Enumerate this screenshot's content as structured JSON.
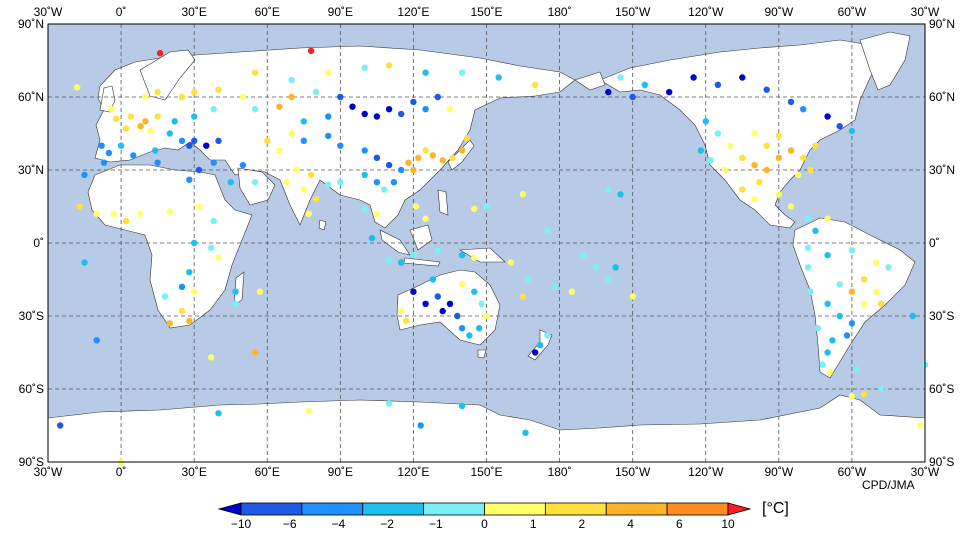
{
  "map": {
    "credit": "CPD/JMA",
    "unit": "[°C]",
    "lon_ticks": [
      "30˚W",
      "0˚",
      "30˚E",
      "60˚E",
      "90˚E",
      "120˚E",
      "150˚E",
      "180˚",
      "150˚W",
      "120˚W",
      "90˚W",
      "60˚W",
      "30˚W"
    ],
    "lat_ticks": [
      "90˚N",
      "60˚N",
      "30˚N",
      "0˚",
      "30˚S",
      "60˚S",
      "90˚S"
    ],
    "lon_range": [
      -30,
      330
    ],
    "lat_range": [
      -90,
      90
    ],
    "colors": {
      "ocean": "#b8cbe6",
      "land": "#ffffff",
      "coast": "#333333",
      "grid": "#555555"
    },
    "legend": {
      "labels": [
        "−10",
        "−6",
        "−4",
        "−2",
        "−1",
        "0",
        "1",
        "2",
        "4",
        "6",
        "10"
      ],
      "colors": [
        "#0000cd",
        "#1e5ae6",
        "#1e90ff",
        "#1ebeee",
        "#78f0f5",
        "#ffff66",
        "#ffe03c",
        "#ffb428",
        "#ff8c1e",
        "#ff1e1e"
      ]
    }
  },
  "chart_data": {
    "type": "scatter",
    "stations": [
      {
        "lon": 10,
        "lat": 50,
        "cat": 7
      },
      {
        "lon": 8,
        "lat": 48,
        "cat": 7
      },
      {
        "lon": 4,
        "lat": 52,
        "cat": 6
      },
      {
        "lon": 15,
        "lat": 52,
        "cat": 6
      },
      {
        "lon": 2,
        "lat": 47,
        "cat": 6
      },
      {
        "lon": -2,
        "lat": 51,
        "cat": 6
      },
      {
        "lon": -4,
        "lat": 55,
        "cat": 5
      },
      {
        "lon": 12,
        "lat": 46,
        "cat": 5
      },
      {
        "lon": 20,
        "lat": 45,
        "cat": 3
      },
      {
        "lon": 25,
        "lat": 42,
        "cat": 2
      },
      {
        "lon": 28,
        "lat": 40,
        "cat": 1
      },
      {
        "lon": 30,
        "lat": 42,
        "cat": 1
      },
      {
        "lon": 35,
        "lat": 40,
        "cat": 0
      },
      {
        "lon": 40,
        "lat": 42,
        "cat": 1
      },
      {
        "lon": 22,
        "lat": 50,
        "cat": 3
      },
      {
        "lon": 30,
        "lat": 52,
        "cat": 3
      },
      {
        "lon": 38,
        "lat": 55,
        "cat": 4
      },
      {
        "lon": 25,
        "lat": 60,
        "cat": 6
      },
      {
        "lon": 15,
        "lat": 62,
        "cat": 6
      },
      {
        "lon": 10,
        "lat": 60,
        "cat": 5
      },
      {
        "lon": 30,
        "lat": 62,
        "cat": 6
      },
      {
        "lon": 40,
        "lat": 63,
        "cat": 6
      },
      {
        "lon": 50,
        "lat": 60,
        "cat": 5
      },
      {
        "lon": 55,
        "lat": 55,
        "cat": 4
      },
      {
        "lon": -8,
        "lat": 40,
        "cat": 2
      },
      {
        "lon": -5,
        "lat": 37,
        "cat": 2
      },
      {
        "lon": 0,
        "lat": 40,
        "cat": 3
      },
      {
        "lon": 14,
        "lat": 38,
        "cat": 3
      },
      {
        "lon": -18,
        "lat": 64,
        "cat": 5
      },
      {
        "lon": 16,
        "lat": 78,
        "cat": 9
      },
      {
        "lon": 78,
        "lat": 79,
        "cat": 9
      },
      {
        "lon": 55,
        "lat": 70,
        "cat": 6
      },
      {
        "lon": 70,
        "lat": 67,
        "cat": 4
      },
      {
        "lon": 85,
        "lat": 70,
        "cat": 5
      },
      {
        "lon": 100,
        "lat": 72,
        "cat": 4
      },
      {
        "lon": 110,
        "lat": 73,
        "cat": 6
      },
      {
        "lon": 125,
        "lat": 70,
        "cat": 3
      },
      {
        "lon": 140,
        "lat": 70,
        "cat": 4
      },
      {
        "lon": 155,
        "lat": 68,
        "cat": 3
      },
      {
        "lon": 170,
        "lat": 65,
        "cat": 6
      },
      {
        "lon": 70,
        "lat": 60,
        "cat": 7
      },
      {
        "lon": 65,
        "lat": 56,
        "cat": 7
      },
      {
        "lon": 80,
        "lat": 62,
        "cat": 4
      },
      {
        "lon": 90,
        "lat": 60,
        "cat": 1
      },
      {
        "lon": 95,
        "lat": 56,
        "cat": 0
      },
      {
        "lon": 100,
        "lat": 53,
        "cat": 0
      },
      {
        "lon": 105,
        "lat": 52,
        "cat": 0
      },
      {
        "lon": 110,
        "lat": 55,
        "cat": 0
      },
      {
        "lon": 115,
        "lat": 53,
        "cat": 1
      },
      {
        "lon": 120,
        "lat": 58,
        "cat": 1
      },
      {
        "lon": 125,
        "lat": 55,
        "cat": 2
      },
      {
        "lon": 130,
        "lat": 60,
        "cat": 1
      },
      {
        "lon": 135,
        "lat": 55,
        "cat": 5
      },
      {
        "lon": 85,
        "lat": 52,
        "cat": 2
      },
      {
        "lon": 75,
        "lat": 50,
        "cat": 3
      },
      {
        "lon": 70,
        "lat": 45,
        "cat": 5
      },
      {
        "lon": 60,
        "lat": 42,
        "cat": 6
      },
      {
        "lon": 65,
        "lat": 38,
        "cat": 5
      },
      {
        "lon": 75,
        "lat": 42,
        "cat": 2
      },
      {
        "lon": 85,
        "lat": 44,
        "cat": 2
      },
      {
        "lon": 90,
        "lat": 40,
        "cat": 2
      },
      {
        "lon": 100,
        "lat": 38,
        "cat": 2
      },
      {
        "lon": 105,
        "lat": 35,
        "cat": 1
      },
      {
        "lon": 110,
        "lat": 32,
        "cat": 1
      },
      {
        "lon": 115,
        "lat": 30,
        "cat": 2
      },
      {
        "lon": 112,
        "lat": 25,
        "cat": 2
      },
      {
        "lon": 118,
        "lat": 33,
        "cat": 7
      },
      {
        "lon": 120,
        "lat": 30,
        "cat": 7
      },
      {
        "lon": 122,
        "lat": 35,
        "cat": 7
      },
      {
        "lon": 125,
        "lat": 38,
        "cat": 6
      },
      {
        "lon": 128,
        "lat": 36,
        "cat": 7
      },
      {
        "lon": 132,
        "lat": 34,
        "cat": 7
      },
      {
        "lon": 136,
        "lat": 35,
        "cat": 6
      },
      {
        "lon": 140,
        "lat": 38,
        "cat": 7
      },
      {
        "lon": 142,
        "lat": 43,
        "cat": 6
      },
      {
        "lon": 100,
        "lat": 28,
        "cat": 3
      },
      {
        "lon": 105,
        "lat": 25,
        "cat": 2
      },
      {
        "lon": 108,
        "lat": 22,
        "cat": 4
      },
      {
        "lon": 78,
        "lat": 28,
        "cat": 6
      },
      {
        "lon": 75,
        "lat": 22,
        "cat": 5
      },
      {
        "lon": 80,
        "lat": 18,
        "cat": 6
      },
      {
        "lon": 77,
        "lat": 12,
        "cat": 5
      },
      {
        "lon": 85,
        "lat": 24,
        "cat": 4
      },
      {
        "lon": 90,
        "lat": 25,
        "cat": 4
      },
      {
        "lon": 72,
        "lat": 30,
        "cat": 5
      },
      {
        "lon": 68,
        "lat": 25,
        "cat": 5
      },
      {
        "lon": 55,
        "lat": 25,
        "cat": 4
      },
      {
        "lon": 45,
        "lat": 25,
        "cat": 3
      },
      {
        "lon": 50,
        "lat": 32,
        "cat": 2
      },
      {
        "lon": 38,
        "lat": 33,
        "cat": 2
      },
      {
        "lon": 32,
        "lat": 30,
        "cat": 1
      },
      {
        "lon": 28,
        "lat": 26,
        "cat": 2
      },
      {
        "lon": 15,
        "lat": 33,
        "cat": 2
      },
      {
        "lon": 5,
        "lat": 36,
        "cat": 2
      },
      {
        "lon": -7,
        "lat": 33,
        "cat": 2
      },
      {
        "lon": -15,
        "lat": 28,
        "cat": 2
      },
      {
        "lon": -17,
        "lat": 15,
        "cat": 6
      },
      {
        "lon": -10,
        "lat": 12,
        "cat": 5
      },
      {
        "lon": -3,
        "lat": 12,
        "cat": 5
      },
      {
        "lon": 2,
        "lat": 9,
        "cat": 6
      },
      {
        "lon": 8,
        "lat": 12,
        "cat": 5
      },
      {
        "lon": 20,
        "lat": 13,
        "cat": 5
      },
      {
        "lon": 32,
        "lat": 15,
        "cat": 5
      },
      {
        "lon": 38,
        "lat": 9,
        "cat": 4
      },
      {
        "lon": 30,
        "lat": 0,
        "cat": 3
      },
      {
        "lon": 37,
        "lat": -2,
        "cat": 4
      },
      {
        "lon": 40,
        "lat": -6,
        "cat": 5
      },
      {
        "lon": 28,
        "lat": -12,
        "cat": 3
      },
      {
        "lon": 25,
        "lat": -18,
        "cat": 2
      },
      {
        "lon": 30,
        "lat": -20,
        "cat": 5
      },
      {
        "lon": 18,
        "lat": -22,
        "cat": 4
      },
      {
        "lon": 25,
        "lat": -28,
        "cat": 6
      },
      {
        "lon": 28,
        "lat": -32,
        "cat": 7
      },
      {
        "lon": 20,
        "lat": -33,
        "cat": 7
      },
      {
        "lon": 47,
        "lat": -20,
        "cat": 3
      },
      {
        "lon": 47,
        "lat": -25,
        "cat": 4
      },
      {
        "lon": 57,
        "lat": -20,
        "cat": 5
      },
      {
        "lon": 55,
        "lat": -45,
        "cat": 7
      },
      {
        "lon": 37,
        "lat": -47,
        "cat": 5
      },
      {
        "lon": -10,
        "lat": -40,
        "cat": 2
      },
      {
        "lon": -15,
        "lat": -8,
        "cat": 3
      },
      {
        "lon": 100,
        "lat": 14,
        "cat": 4
      },
      {
        "lon": 105,
        "lat": 12,
        "cat": 5
      },
      {
        "lon": 103,
        "lat": 2,
        "cat": 3
      },
      {
        "lon": 110,
        "lat": -7,
        "cat": 4
      },
      {
        "lon": 115,
        "lat": -8,
        "cat": 3
      },
      {
        "lon": 120,
        "lat": -5,
        "cat": 4
      },
      {
        "lon": 125,
        "lat": 10,
        "cat": 5
      },
      {
        "lon": 121,
        "lat": 15,
        "cat": 5
      },
      {
        "lon": 130,
        "lat": -3,
        "cat": 4
      },
      {
        "lon": 140,
        "lat": -5,
        "cat": 3
      },
      {
        "lon": 145,
        "lat": -6,
        "cat": 5
      },
      {
        "lon": 120,
        "lat": -20,
        "cat": 0
      },
      {
        "lon": 125,
        "lat": -25,
        "cat": 0
      },
      {
        "lon": 130,
        "lat": -22,
        "cat": 1
      },
      {
        "lon": 135,
        "lat": -25,
        "cat": 0
      },
      {
        "lon": 138,
        "lat": -30,
        "cat": 1
      },
      {
        "lon": 132,
        "lat": -28,
        "cat": 0
      },
      {
        "lon": 145,
        "lat": -20,
        "cat": 3
      },
      {
        "lon": 148,
        "lat": -25,
        "cat": 4
      },
      {
        "lon": 150,
        "lat": -30,
        "cat": 5
      },
      {
        "lon": 147,
        "lat": -35,
        "cat": 3
      },
      {
        "lon": 143,
        "lat": -38,
        "cat": 3
      },
      {
        "lon": 140,
        "lat": -35,
        "cat": 2
      },
      {
        "lon": 117,
        "lat": -32,
        "cat": 6
      },
      {
        "lon": 115,
        "lat": -28,
        "cat": 5
      },
      {
        "lon": 128,
        "lat": -15,
        "cat": 3
      },
      {
        "lon": 140,
        "lat": -17,
        "cat": 5
      },
      {
        "lon": 172,
        "lat": -42,
        "cat": 3
      },
      {
        "lon": 175,
        "lat": -38,
        "cat": 4
      },
      {
        "lon": 170,
        "lat": -45,
        "cat": 0
      },
      {
        "lon": 178,
        "lat": -18,
        "cat": 4
      },
      {
        "lon": 185,
        "lat": -20,
        "cat": 5
      },
      {
        "lon": 200,
        "lat": -15,
        "cat": 4
      },
      {
        "lon": 210,
        "lat": -22,
        "cat": 5
      },
      {
        "lon": 195,
        "lat": -10,
        "cat": 4
      },
      {
        "lon": 190,
        "lat": -5,
        "cat": 4
      },
      {
        "lon": 203,
        "lat": -10,
        "cat": 3
      },
      {
        "lon": 160,
        "lat": -8,
        "cat": 5
      },
      {
        "lon": 167,
        "lat": -15,
        "cat": 4
      },
      {
        "lon": 165,
        "lat": -22,
        "cat": 6
      },
      {
        "lon": 205,
        "lat": 20,
        "cat": 3
      },
      {
        "lon": 200,
        "lat": 22,
        "cat": 4
      },
      {
        "lon": 165,
        "lat": 20,
        "cat": 5
      },
      {
        "lon": 150,
        "lat": 15,
        "cat": 4
      },
      {
        "lon": 145,
        "lat": 14,
        "cat": 5
      },
      {
        "lon": 175,
        "lat": 5,
        "cat": 4
      },
      {
        "lon": 210,
        "lat": 60,
        "cat": 1
      },
      {
        "lon": 200,
        "lat": 62,
        "cat": 0
      },
      {
        "lon": 215,
        "lat": 65,
        "cat": 3
      },
      {
        "lon": 205,
        "lat": 68,
        "cat": 4
      },
      {
        "lon": 225,
        "lat": 62,
        "cat": 0
      },
      {
        "lon": 235,
        "lat": 68,
        "cat": 0
      },
      {
        "lon": 245,
        "lat": 65,
        "cat": 1
      },
      {
        "lon": 255,
        "lat": 68,
        "cat": 0
      },
      {
        "lon": 265,
        "lat": 63,
        "cat": 1
      },
      {
        "lon": 275,
        "lat": 58,
        "cat": 1
      },
      {
        "lon": 280,
        "lat": 55,
        "cat": 2
      },
      {
        "lon": 290,
        "lat": 52,
        "cat": 0
      },
      {
        "lon": 295,
        "lat": 48,
        "cat": 1
      },
      {
        "lon": 300,
        "lat": 46,
        "cat": 3
      },
      {
        "lon": 240,
        "lat": 50,
        "cat": 3
      },
      {
        "lon": 245,
        "lat": 45,
        "cat": 4
      },
      {
        "lon": 250,
        "lat": 40,
        "cat": 5
      },
      {
        "lon": 255,
        "lat": 35,
        "cat": 6
      },
      {
        "lon": 260,
        "lat": 32,
        "cat": 7
      },
      {
        "lon": 265,
        "lat": 30,
        "cat": 7
      },
      {
        "lon": 270,
        "lat": 35,
        "cat": 7
      },
      {
        "lon": 275,
        "lat": 38,
        "cat": 7
      },
      {
        "lon": 280,
        "lat": 35,
        "cat": 6
      },
      {
        "lon": 285,
        "lat": 40,
        "cat": 6
      },
      {
        "lon": 283,
        "lat": 30,
        "cat": 6
      },
      {
        "lon": 278,
        "lat": 28,
        "cat": 5
      },
      {
        "lon": 260,
        "lat": 45,
        "cat": 5
      },
      {
        "lon": 270,
        "lat": 44,
        "cat": 6
      },
      {
        "lon": 265,
        "lat": 40,
        "cat": 6
      },
      {
        "lon": 238,
        "lat": 38,
        "cat": 3
      },
      {
        "lon": 242,
        "lat": 34,
        "cat": 4
      },
      {
        "lon": 248,
        "lat": 30,
        "cat": 5
      },
      {
        "lon": 255,
        "lat": 22,
        "cat": 6
      },
      {
        "lon": 260,
        "lat": 18,
        "cat": 5
      },
      {
        "lon": 262,
        "lat": 25,
        "cat": 6
      },
      {
        "lon": 270,
        "lat": 20,
        "cat": 5
      },
      {
        "lon": 275,
        "lat": 15,
        "cat": 5
      },
      {
        "lon": 282,
        "lat": 10,
        "cat": 4
      },
      {
        "lon": 290,
        "lat": 10,
        "cat": 5
      },
      {
        "lon": 285,
        "lat": 5,
        "cat": 3
      },
      {
        "lon": 282,
        "lat": -2,
        "cat": 4
      },
      {
        "lon": 290,
        "lat": -5,
        "cat": 3
      },
      {
        "lon": 300,
        "lat": -3,
        "cat": 4
      },
      {
        "lon": 310,
        "lat": -8,
        "cat": 5
      },
      {
        "lon": 315,
        "lat": -10,
        "cat": 4
      },
      {
        "lon": 305,
        "lat": -15,
        "cat": 6
      },
      {
        "lon": 300,
        "lat": -20,
        "cat": 7
      },
      {
        "lon": 310,
        "lat": -20,
        "cat": 5
      },
      {
        "lon": 312,
        "lat": -25,
        "cat": 6
      },
      {
        "lon": 305,
        "lat": -25,
        "cat": 5
      },
      {
        "lon": 295,
        "lat": -17,
        "cat": 4
      },
      {
        "lon": 290,
        "lat": -25,
        "cat": 3
      },
      {
        "lon": 295,
        "lat": -30,
        "cat": 3
      },
      {
        "lon": 300,
        "lat": -33,
        "cat": 2
      },
      {
        "lon": 298,
        "lat": -38,
        "cat": 2
      },
      {
        "lon": 292,
        "lat": -40,
        "cat": 3
      },
      {
        "lon": 290,
        "lat": -45,
        "cat": 3
      },
      {
        "lon": 288,
        "lat": -50,
        "cat": 4
      },
      {
        "lon": 291,
        "lat": -53,
        "cat": 5
      },
      {
        "lon": 286,
        "lat": -35,
        "cat": 4
      },
      {
        "lon": 283,
        "lat": -20,
        "cat": 4
      },
      {
        "lon": 282,
        "lat": -10,
        "cat": 4
      },
      {
        "lon": 302,
        "lat": -52,
        "cat": 4
      },
      {
        "lon": 305,
        "lat": -62,
        "cat": 6
      },
      {
        "lon": 300,
        "lat": -63,
        "cat": 5
      },
      {
        "lon": 312,
        "lat": -60,
        "cat": 4
      },
      {
        "lon": 328,
        "lat": -75,
        "cat": 5
      },
      {
        "lon": -25,
        "lat": -75,
        "cat": 1
      },
      {
        "lon": 40,
        "lat": -70,
        "cat": 3
      },
      {
        "lon": 77,
        "lat": -69,
        "cat": 5
      },
      {
        "lon": 110,
        "lat": -66,
        "cat": 4
      },
      {
        "lon": 140,
        "lat": -67,
        "cat": 3
      },
      {
        "lon": 166,
        "lat": -78,
        "cat": 3
      },
      {
        "lon": 123,
        "lat": -75,
        "cat": 2
      },
      {
        "lon": 0,
        "lat": -90,
        "cat": 5
      },
      {
        "lon": 330,
        "lat": -50,
        "cat": 4
      },
      {
        "lon": 325,
        "lat": -30,
        "cat": 3
      }
    ]
  }
}
